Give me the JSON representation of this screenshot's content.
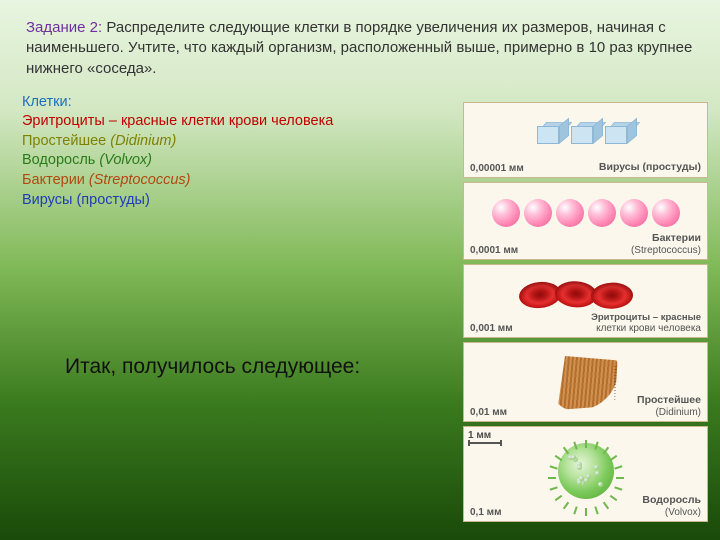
{
  "task": {
    "label": "Задание 2:",
    "text": " Распределите следующие клетки в порядке увеличения их размеров, начиная с наименьшего. Учтите, что каждый организм, расположенный выше, примерно в 10 раз крупнее нижнего «соседа»."
  },
  "cells": {
    "header": {
      "text": "Клетки:",
      "color": "#1f6fbf"
    },
    "items": [
      {
        "text": "Эритроциты – красные клетки крови человека",
        "color": "#c00000"
      },
      {
        "text": "Простейшее ",
        "italic": "(Didinium)",
        "color": "#808000"
      },
      {
        "text": "Водоросль ",
        "italic": "(Volvox)",
        "color": "#2a7a1a"
      },
      {
        "text": "Бактерии ",
        "italic": "(Streptococcus)",
        "color": "#b04810"
      },
      {
        "text": "Вирусы (простуды)",
        "italic": "",
        "color": "#1f3db5"
      }
    ]
  },
  "result_line": "Итак, получилось следующее:",
  "cards": [
    {
      "scale": "0,00001 мм",
      "name": "Вирусы (простуды)",
      "sub": ""
    },
    {
      "scale": "0,0001 мм",
      "name": "Бактерии",
      "sub": "(Streptococcus)"
    },
    {
      "scale": "0,001 мм",
      "name": "Эритроциты – красные",
      "sub": "клетки крови человека"
    },
    {
      "scale": "0,01 мм",
      "name": "Простейшее",
      "sub": "(Didinium)"
    },
    {
      "scale": "0,1 мм",
      "scale2": "1 мм",
      "name": "Водоросль",
      "sub": "(Volvox)"
    }
  ],
  "colors": {
    "task_label": "#7030a0",
    "card_bg": "#fbf7ec",
    "card_border": "#c8b890"
  }
}
